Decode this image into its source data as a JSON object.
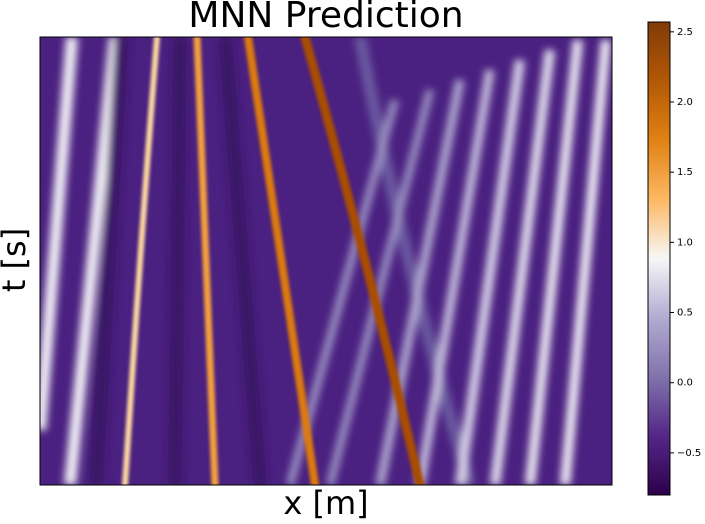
{
  "chart_data": {
    "type": "heatmap",
    "title": "MNN Prediction",
    "xlabel": "x [m]",
    "ylabel": "t [s]",
    "colorbar": {
      "clim": [
        -0.8,
        2.57
      ],
      "colors": [
        "#2d004b",
        "#542788",
        "#8073ac",
        "#b2abd2",
        "#f7f7f7",
        "#fdb863",
        "#e08214",
        "#b35806",
        "#7f3b08"
      ],
      "ticks": [
        {
          "value": -0.5,
          "label": "−0.5"
        },
        {
          "value": 0,
          "label": "0.0"
        },
        0.5,
        {
          "value": 1,
          "label": "1.0"
        },
        1.5,
        {
          "value": 2,
          "label": "2.0"
        },
        2.5
      ]
    }
  }
}
